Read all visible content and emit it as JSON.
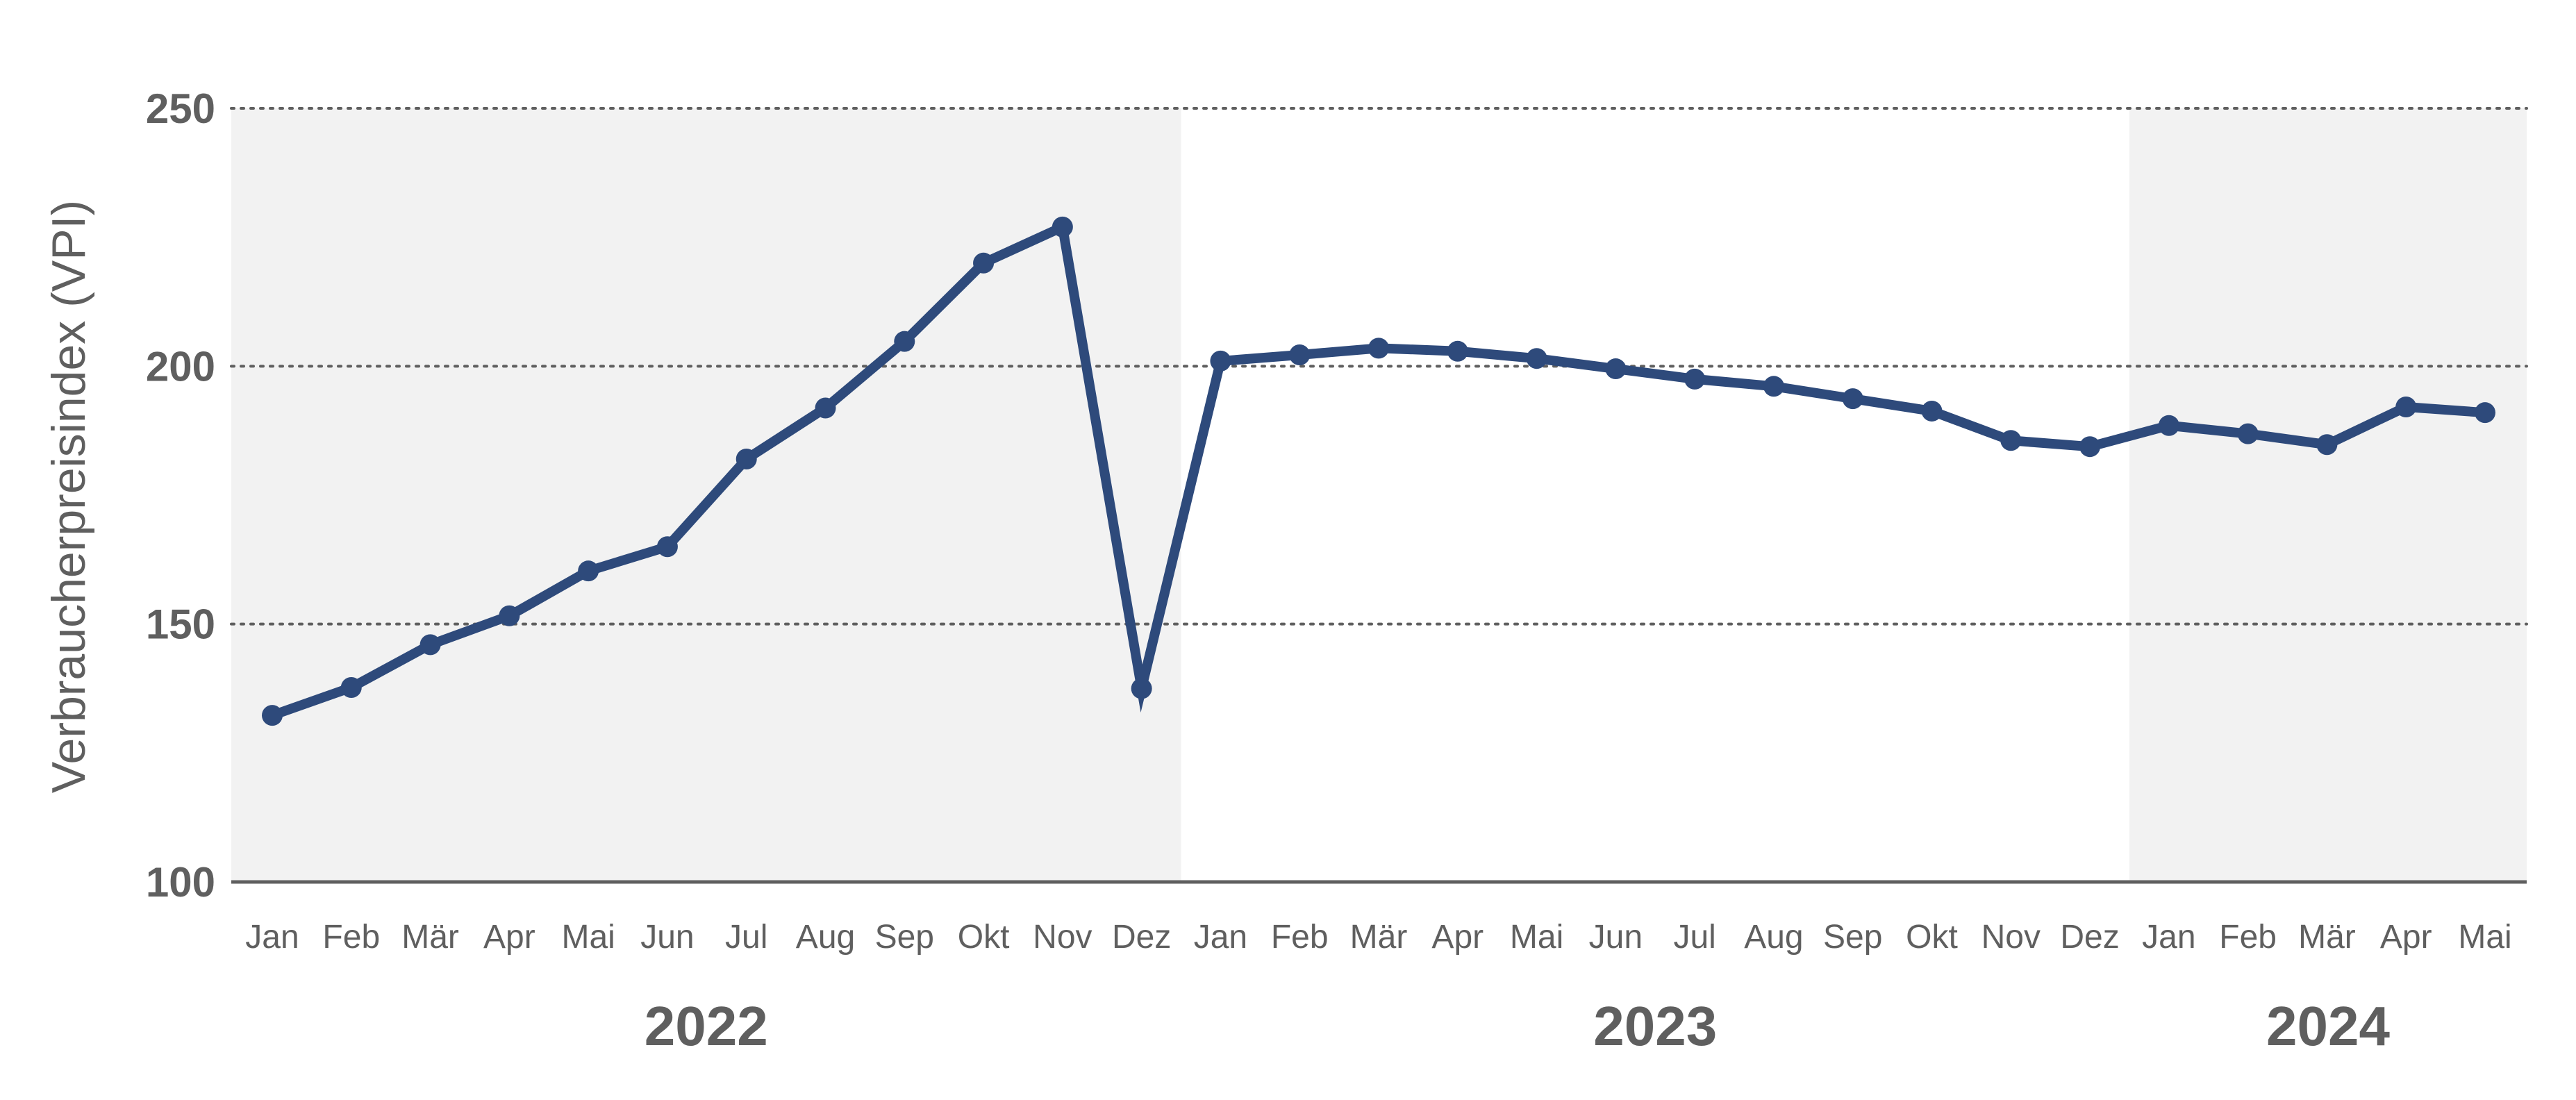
{
  "chart_data": {
    "type": "line",
    "ylabel": "Verbraucherpreisindex (VPI)",
    "ylim": [
      100,
      250
    ],
    "yticks": [
      100,
      150,
      200,
      250
    ],
    "grid": "horizontal dotted",
    "categories": [
      "Jan",
      "Feb",
      "Mär",
      "Apr",
      "Mai",
      "Jun",
      "Jul",
      "Aug",
      "Sep",
      "Okt",
      "Nov",
      "Dez",
      "Jan",
      "Feb",
      "Mär",
      "Apr",
      "Mai",
      "Jun",
      "Jul",
      "Aug",
      "Sep",
      "Okt",
      "Nov",
      "Dez",
      "Jan",
      "Feb",
      "Mär",
      "Apr",
      "Mai"
    ],
    "years": [
      {
        "label": "2022",
        "start": 0,
        "end": 11,
        "shaded": true
      },
      {
        "label": "2023",
        "start": 12,
        "end": 23,
        "shaded": false
      },
      {
        "label": "2024",
        "start": 24,
        "end": 28,
        "shaded": true
      }
    ],
    "series": [
      {
        "values": [
          132.3,
          137.7,
          146.0,
          151.6,
          160.3,
          165.0,
          182.0,
          191.9,
          204.8,
          220.0,
          227.0,
          137.5,
          201.0,
          202.2,
          203.5,
          202.9,
          201.5,
          199.5,
          197.5,
          196.1,
          193.7,
          191.3,
          185.6,
          184.4,
          188.5,
          186.9,
          184.8,
          192.1,
          191.0
        ]
      }
    ],
    "colors": {
      "line": "#2e4a7b",
      "shade": "#f2f2f2",
      "axis": "#5f5f5f",
      "grid": "#5f5f5f",
      "text": "#5f5f5f"
    }
  }
}
